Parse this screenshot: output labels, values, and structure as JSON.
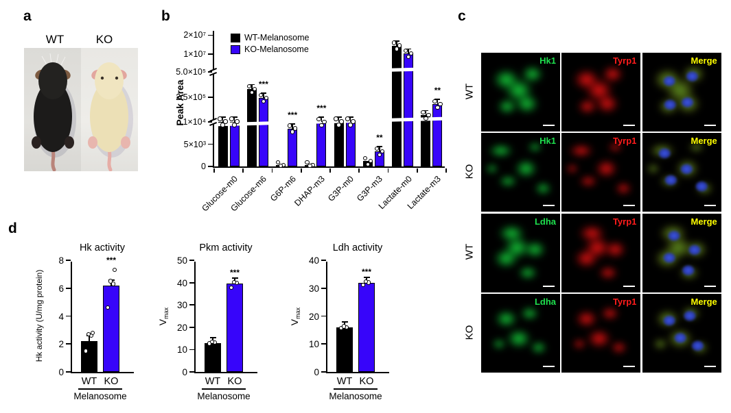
{
  "accent_blue": "#3705FA",
  "panel_a": {
    "letter": "a",
    "wt_label": "WT",
    "ko_label": "KO"
  },
  "panel_b": {
    "letter": "b"
  },
  "panel_c": {
    "letter": "c",
    "label_colors": {
      "green": "#1EE04E",
      "red": "#FF1C1C",
      "merge": "#FFFF00"
    },
    "rows": [
      {
        "group": "WT",
        "shape": "a",
        "tiles": [
          {
            "label": "Hk1",
            "channel": "green"
          },
          {
            "label": "Tyrp1",
            "channel": "red"
          },
          {
            "label": "Merge",
            "channel": "merge"
          }
        ]
      },
      {
        "group": "KO",
        "shape": "b",
        "tiles": [
          {
            "label": "Hk1",
            "channel": "green"
          },
          {
            "label": "Tyrp1",
            "channel": "red"
          },
          {
            "label": "Merge",
            "channel": "merge"
          }
        ]
      },
      {
        "group": "WT",
        "shape": "a2",
        "tiles": [
          {
            "label": "Ldha",
            "channel": "green"
          },
          {
            "label": "Tyrp1",
            "channel": "red"
          },
          {
            "label": "Merge",
            "channel": "merge"
          }
        ]
      },
      {
        "group": "KO",
        "shape": "b2",
        "tiles": [
          {
            "label": "Ldha",
            "channel": "green"
          },
          {
            "label": "Tyrp1",
            "channel": "red"
          },
          {
            "label": "Merge",
            "channel": "merge"
          }
        ]
      }
    ]
  },
  "panel_d": {
    "letter": "d"
  },
  "chart_data": [
    {
      "id": "b",
      "type": "bar",
      "title": "",
      "ylabel": "Peak Area",
      "categories": [
        "Glucose-m0",
        "Glucose-m6",
        "G6P-m6",
        "DHAP-m3",
        "G3P-m0",
        "G3P-m3",
        "Lactate-m0",
        "Lactate-m3"
      ],
      "series": [
        {
          "name": "WT-Melanosome",
          "color": "#000000",
          "values": [
            13000,
            330000,
            300,
            300,
            11000,
            1200,
            14500000,
            75000
          ]
        },
        {
          "name": "KO-Melanosome",
          "color": "#3705FA",
          "values": [
            11500,
            245000,
            8500,
            10500,
            11000,
            3400,
            10200000,
            185000
          ]
        }
      ],
      "significance": [
        "",
        "***",
        "***",
        "***",
        "",
        "**",
        "",
        "**"
      ],
      "y_ticks": [
        {
          "v": 0,
          "label": "0"
        },
        {
          "v": 5000,
          "label": "5×10³"
        },
        {
          "v": 10000,
          "label": "1×10⁴"
        },
        {
          "v": 250000,
          "label": "2.5×10⁵"
        },
        {
          "v": 500000,
          "label": "5.0×10⁵"
        },
        {
          "v": 10000000,
          "label": "1×10⁷"
        },
        {
          "v": 20000000,
          "label": "2×10⁷"
        }
      ],
      "segments": [
        {
          "v0": 0,
          "v1": 10000,
          "f0": 0,
          "f1": 0.325
        },
        {
          "v0": 10000,
          "v1": 500000,
          "f0": 0.325,
          "f1": 0.69
        },
        {
          "v0": 500000,
          "v1": 20500000,
          "f0": 0.69,
          "f1": 0.965
        }
      ],
      "axis_breaks": [
        10000,
        500000
      ],
      "legend_position": "top-left",
      "grid": false,
      "points_per_bar": 3
    },
    {
      "id": "hk",
      "type": "bar",
      "title": "Hk activity",
      "ylabel": "Hk activity (U/mg protein)",
      "ylabel_sub": "",
      "group_label": "Melanosome",
      "ylim": [
        0,
        8
      ],
      "ytick_step": 2,
      "bars": [
        {
          "label": "WT",
          "color": "#000000",
          "value": 2.2,
          "points": [
            1.5,
            2.6,
            2.7,
            2.8
          ],
          "sig": ""
        },
        {
          "label": "KO",
          "color": "#3705FA",
          "value": 6.2,
          "points": [
            4.6,
            6.3,
            6.5,
            7.3
          ],
          "sig": "***"
        }
      ]
    },
    {
      "id": "pkm",
      "type": "bar",
      "title": "Pkm activity",
      "ylabel": "V",
      "ylabel_sub": "max",
      "group_label": "Melanosome",
      "ylim": [
        0,
        50
      ],
      "ytick_step": 10,
      "bars": [
        {
          "label": "WT",
          "color": "#000000",
          "value": 13,
          "points": [
            12.7,
            13.2,
            13.5
          ],
          "sig": ""
        },
        {
          "label": "KO",
          "color": "#3705FA",
          "value": 39.5,
          "points": [
            37.8,
            39.8,
            40.2
          ],
          "sig": "***"
        }
      ]
    },
    {
      "id": "ldh",
      "type": "bar",
      "title": "Ldh activity",
      "ylabel": "V",
      "ylabel_sub": "max",
      "group_label": "Melanosome",
      "ylim": [
        0,
        40
      ],
      "ytick_step": 10,
      "bars": [
        {
          "label": "WT",
          "color": "#000000",
          "value": 16,
          "points": [
            15.7,
            16.0,
            16.3
          ],
          "sig": ""
        },
        {
          "label": "KO",
          "color": "#3705FA",
          "value": 32,
          "points": [
            31.2,
            32.0,
            32.4
          ],
          "sig": "***"
        }
      ]
    }
  ]
}
